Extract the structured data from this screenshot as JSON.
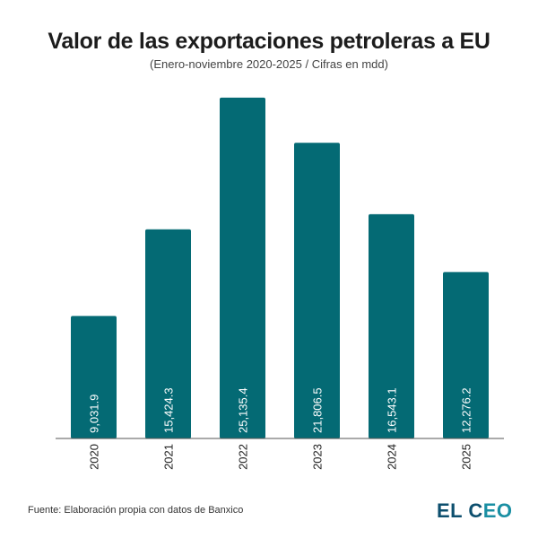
{
  "chart_data": {
    "type": "bar",
    "title": "Valor de las exportaciones petroleras a EU",
    "subtitle": "(Enero-noviembre 2020-2025 / Cifras en mdd)",
    "categories": [
      "2020",
      "2021",
      "2022",
      "2023",
      "2024",
      "2025"
    ],
    "values": [
      9031.9,
      15424.3,
      25135.4,
      21806.5,
      16543.1,
      12276.2
    ],
    "data_labels": [
      "9,031.9",
      "15,424.3",
      "25,135.4",
      "21,806.5",
      "16,543.1",
      "12,276.2"
    ],
    "xlabel": "",
    "ylabel": "",
    "ylim": [
      0,
      26450
    ],
    "grid": false,
    "bar_color": "#046a74"
  },
  "footer": {
    "source": "Fuente: Elaboración propia con datos de Banxico",
    "logo": "EL CEO"
  }
}
